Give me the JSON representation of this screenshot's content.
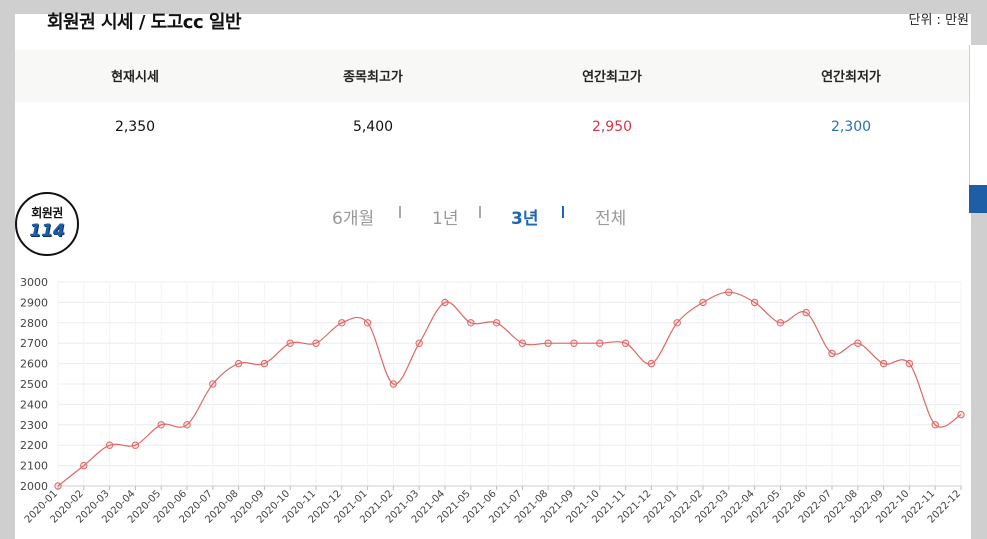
{
  "header": {
    "title": "회원권 시세 / 도고cc 일반",
    "unit": "단위 : 만원"
  },
  "stats": {
    "labels": [
      "현재시세",
      "종목최고가",
      "연간최고가",
      "연간최저가"
    ],
    "values": [
      "2,350",
      "5,400",
      "2,950",
      "2,300"
    ]
  },
  "logo": {
    "line1": "회원권",
    "line2": "114"
  },
  "tabs": {
    "t6m": "6개월",
    "t1y": "1년",
    "t3y": "3년",
    "tall": "전체",
    "active": "3년"
  },
  "chart_data": {
    "type": "line",
    "x": [
      "2020-01",
      "2020-02",
      "2020-03",
      "2020-04",
      "2020-05",
      "2020-06",
      "2020-07",
      "2020-08",
      "2020-09",
      "2020-10",
      "2020-11",
      "2020-12",
      "2021-01",
      "2021-02",
      "2021-03",
      "2021-04",
      "2021-05",
      "2021-06",
      "2021-07",
      "2021-08",
      "2021-09",
      "2021-10",
      "2021-11",
      "2021-12",
      "2022-01",
      "2022-02",
      "2022-03",
      "2022-04",
      "2022-05",
      "2022-06",
      "2022-07",
      "2022-08",
      "2022-09",
      "2022-10",
      "2022-11",
      "2022-12"
    ],
    "series": [
      {
        "values": [
          2000,
          2100,
          2200,
          2200,
          2300,
          2300,
          2500,
          2600,
          2600,
          2700,
          2700,
          2800,
          2800,
          2500,
          2700,
          2900,
          2800,
          2800,
          2700,
          2700,
          2700,
          2700,
          2700,
          2600,
          2800,
          2900,
          2950,
          2900,
          2800,
          2850,
          2650,
          2700,
          2600,
          2600,
          2300,
          2350
        ],
        "color": "#e06666"
      }
    ],
    "yticks": [
      2000,
      2100,
      2200,
      2300,
      2400,
      2500,
      2600,
      2700,
      2800,
      2900,
      3000
    ],
    "ylim": [
      2000,
      3000
    ],
    "grid": true,
    "smooth": true
  }
}
